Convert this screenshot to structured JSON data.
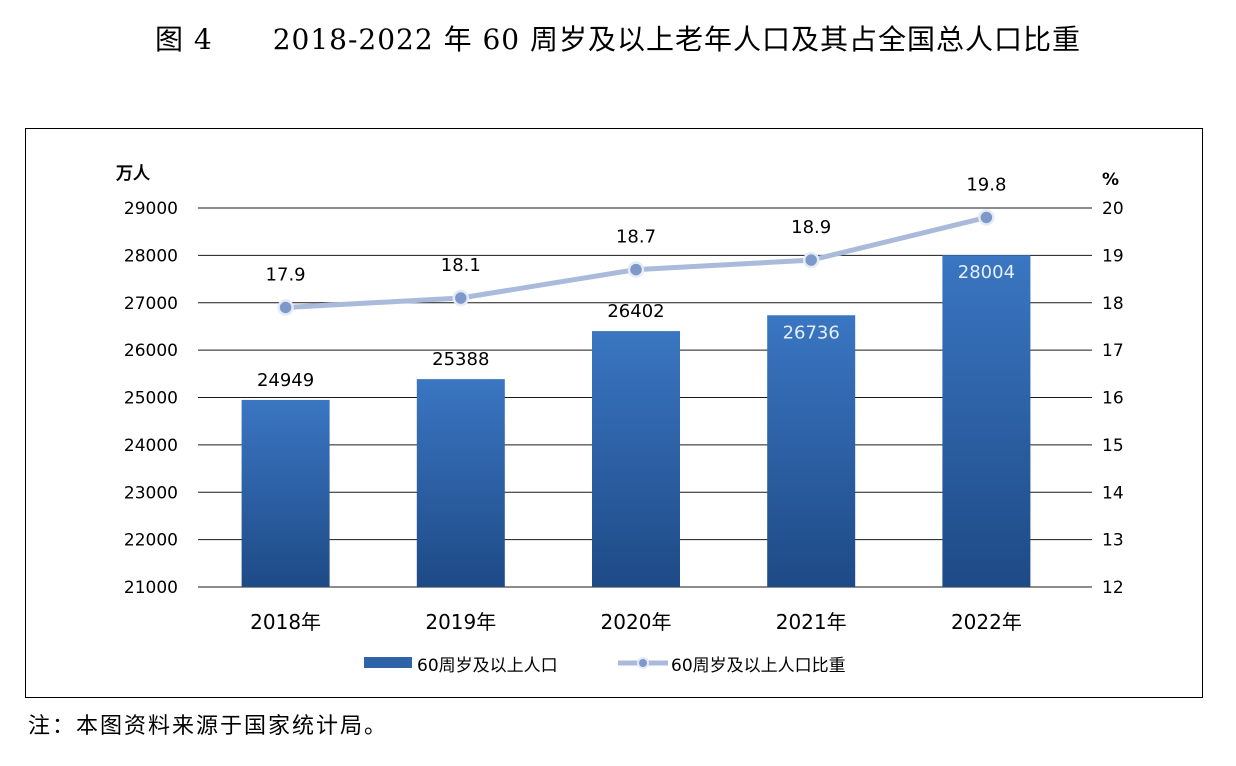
{
  "figure": {
    "number": "图 4",
    "title": "2018-2022 年 60 周岁及以上老年人口及其占全国总人口比重",
    "note": "注：本图资料来源于国家统计局。"
  },
  "chart_data": {
    "type": "bar",
    "title": "2018-2022 年 60 周岁及以上老年人口及其占全国总人口比重",
    "categories": [
      "2018年",
      "2019年",
      "2020年",
      "2021年",
      "2022年"
    ],
    "y_left": {
      "unit": "万人",
      "min": 21000,
      "max": 29000,
      "step": 1000,
      "ticks": [
        "21000",
        "22000",
        "23000",
        "24000",
        "25000",
        "26000",
        "27000",
        "28000",
        "29000"
      ]
    },
    "y_right": {
      "unit": "%",
      "min": 12,
      "max": 20,
      "step": 1,
      "ticks": [
        "12",
        "13",
        "14",
        "15",
        "16",
        "17",
        "18",
        "19",
        "20"
      ]
    },
    "series": [
      {
        "name": "60周岁及以上人口",
        "type": "bar",
        "axis": "left",
        "values": [
          24949,
          25388,
          26402,
          26736,
          28004
        ],
        "labels": [
          "24949",
          "25388",
          "26402",
          "26736",
          "28004"
        ],
        "label_inside": [
          false,
          false,
          false,
          true,
          true
        ],
        "color": "#2e63a8"
      },
      {
        "name": "60周岁及以上人口比重",
        "type": "line",
        "axis": "right",
        "values": [
          17.9,
          18.1,
          18.7,
          18.9,
          19.8
        ],
        "labels": [
          "17.9",
          "18.1",
          "18.7",
          "18.9",
          "19.8"
        ],
        "color": "#9fb3d6"
      }
    ],
    "grid": true,
    "legend_position": "bottom"
  }
}
